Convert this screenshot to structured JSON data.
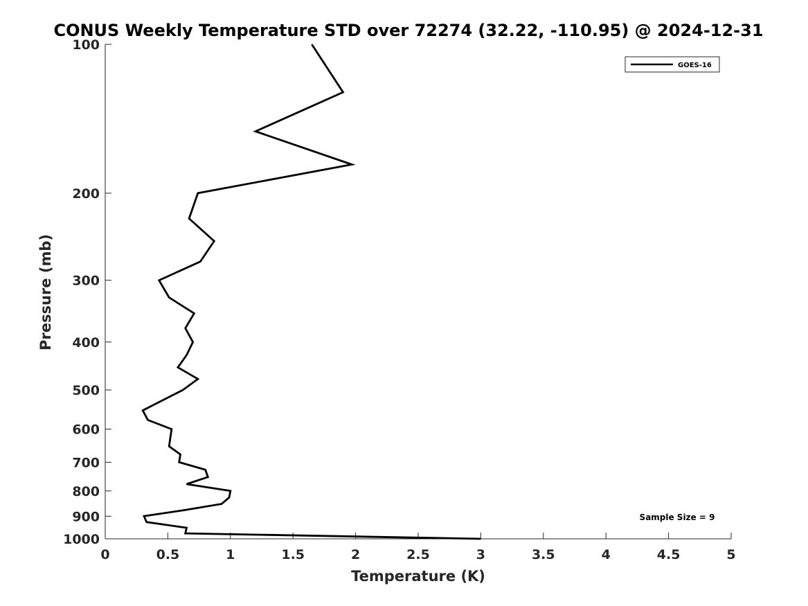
{
  "chart_data": {
    "type": "line",
    "title": "CONUS Weekly Temperature STD over 72274 (32.22, -110.95) @ 2024-12-31",
    "xlabel": "Temperature (K)",
    "ylabel": "Pressure (mb)",
    "xlim": [
      0,
      5
    ],
    "ylim": [
      100,
      1000
    ],
    "yscale": "log",
    "y_reversed": true,
    "x_ticks": [
      0,
      0.5,
      1,
      1.5,
      2,
      2.5,
      3,
      3.5,
      4,
      4.5,
      5
    ],
    "x_tick_labels": [
      "0",
      "0.5",
      "1",
      "1.5",
      "2",
      "2.5",
      "3",
      "3.5",
      "4",
      "4.5",
      "5"
    ],
    "y_ticks": [
      100,
      200,
      300,
      400,
      500,
      600,
      700,
      800,
      900,
      1000
    ],
    "y_tick_labels": [
      "100",
      "200",
      "300",
      "400",
      "500",
      "600",
      "700",
      "800",
      "900",
      "1000"
    ],
    "grid": false,
    "legend_position": "top-right",
    "series": [
      {
        "name": "GOES-16",
        "color": "#000000",
        "points": [
          [
            1.65,
            100
          ],
          [
            1.9,
            125
          ],
          [
            1.2,
            150
          ],
          [
            1.97,
            175
          ],
          [
            0.74,
            200
          ],
          [
            0.67,
            225
          ],
          [
            0.87,
            250
          ],
          [
            0.76,
            275
          ],
          [
            0.43,
            300
          ],
          [
            0.51,
            325
          ],
          [
            0.71,
            350
          ],
          [
            0.64,
            375
          ],
          [
            0.7,
            400
          ],
          [
            0.65,
            425
          ],
          [
            0.58,
            450
          ],
          [
            0.74,
            475
          ],
          [
            0.62,
            500
          ],
          [
            0.3,
            550
          ],
          [
            0.34,
            575
          ],
          [
            0.53,
            600
          ],
          [
            0.52,
            625
          ],
          [
            0.51,
            650
          ],
          [
            0.6,
            675
          ],
          [
            0.59,
            700
          ],
          [
            0.8,
            725
          ],
          [
            0.82,
            750
          ],
          [
            0.65,
            775
          ],
          [
            1.0,
            800
          ],
          [
            0.99,
            825
          ],
          [
            0.93,
            850
          ],
          [
            0.63,
            875
          ],
          [
            0.31,
            900
          ],
          [
            0.33,
            925
          ],
          [
            0.65,
            950
          ],
          [
            0.64,
            975
          ],
          [
            3.0,
            1000
          ]
        ]
      }
    ],
    "annotation": "Sample Size = 9"
  }
}
